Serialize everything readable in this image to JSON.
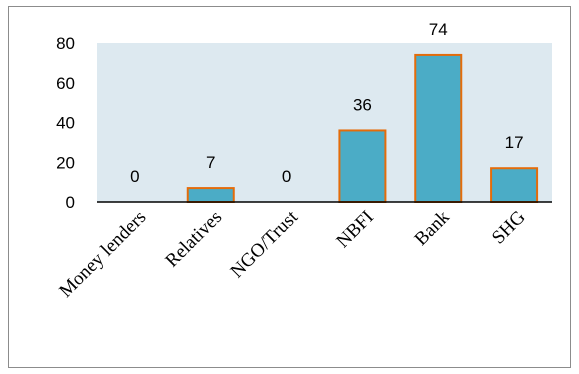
{
  "chart_data": {
    "type": "bar",
    "categories": [
      "Money lenders",
      "Relatives",
      "NGO/Trust",
      "NBFI",
      "Bank",
      "SHG"
    ],
    "values": [
      0,
      7,
      0,
      36,
      74,
      17
    ],
    "ylim": [
      0,
      80
    ],
    "yticks": [
      0,
      20,
      40,
      60,
      80
    ],
    "grid": false,
    "legend": "none",
    "colors": {
      "bar_fill": "#4bacc6",
      "bar_stroke": "#e46c0a",
      "plot_background": "#dde9f0",
      "axis_line": "#000000",
      "text": "#000000"
    }
  }
}
